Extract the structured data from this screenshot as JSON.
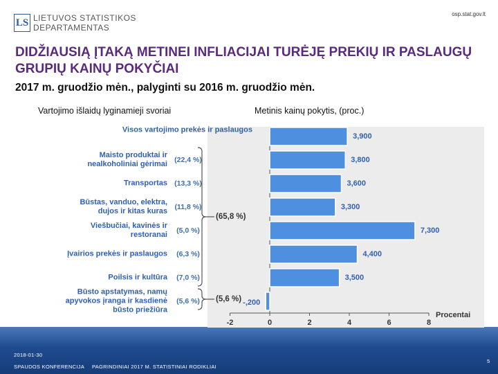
{
  "header": {
    "logo": "LS",
    "org_line1": "LIETUVOS STATISTIKOS",
    "org_line2": "DEPARTAMENTAS",
    "url": "osp.stat.gov.lt"
  },
  "chart_data": {
    "type": "bar",
    "orientation": "horizontal",
    "title": "DIDŽIAUSIĄ ĮTAKĄ METINEI INFLIACIJAI TURĖJĘ PREKIŲ IR PASLAUGŲ GRUPIŲ KAINŲ POKYČIAI",
    "subtitle": "2017 m. gruodžio mėn., palyginti su 2016 m. gruodžio mėn.",
    "left_header": "Vartojimo išlaidų lyginamieji svoriai",
    "right_header": "Metinis kainų pokytis, (proc.)",
    "x_label": "Procentai",
    "categories": [
      "Visos vartojimo prekės ir paslaugos",
      "Maisto produktai ir nealkoholiniai gėrimai",
      "Transportas",
      "Būstas, vanduo, elektra, dujos ir kitas kuras",
      "Viešbučiai, kavinės ir restoranai",
      "Įvairios prekės ir paslaugos",
      "Poilsis ir kultūra",
      "Būsto apstatymas, namų apyvokos įranga ir kasdienė būsto priežiūra"
    ],
    "values": [
      3.9,
      3.8,
      3.6,
      3.3,
      7.3,
      4.4,
      3.5,
      -0.2
    ],
    "value_labels": [
      "3,900",
      "3,800",
      "3,600",
      "3,300",
      "7,300",
      "4,400",
      "3,500",
      "-,200"
    ],
    "weights": [
      null,
      22.4,
      13.3,
      11.8,
      5.0,
      6.3,
      7.0,
      5.6
    ],
    "weight_labels": [
      null,
      "(22,4 %)",
      "(13,3 %)",
      "(11,8 %)",
      "(5,0 %)",
      "(6,3 %)",
      "(7,0 %)",
      "(5,6 %)"
    ],
    "groups": [
      {
        "value": 65.8,
        "label": "(65,8 %)"
      },
      {
        "value": 5.6,
        "label": "(5,6 %)"
      }
    ],
    "color": "#4f8fdf",
    "xlim": [
      -2,
      8
    ],
    "xticks": [
      -2,
      0,
      2,
      4,
      6,
      8
    ]
  },
  "footer": {
    "date": "2018-01-30",
    "event": "SPAUDOS KONFERENCIJA",
    "topic": "PAGRINDINIAI 2017 M. STATISTINIAI RODIKLIAI",
    "page": 5
  }
}
